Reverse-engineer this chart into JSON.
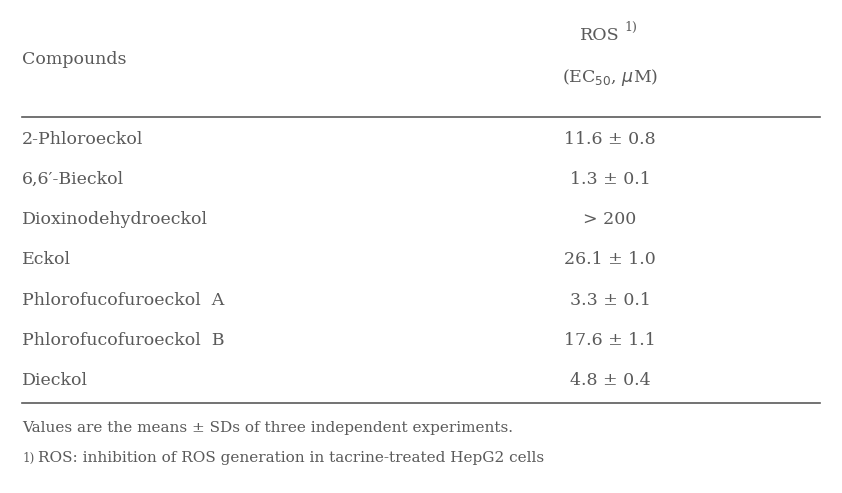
{
  "compounds": [
    "2-Phloroeckol",
    "6,6′-Bieckol",
    "Dioxinodehydroeckol",
    "Eckol",
    "Phlorofucofuroeckol  A",
    "Phlorofucofuroeckol  B",
    "Dieckol"
  ],
  "ros_values": [
    "11.6 ± 0.8",
    "1.3 ± 0.1",
    "> 200",
    "26.1 ± 1.0",
    "3.3 ± 0.1",
    "17.6 ± 1.1",
    "4.8 ± 0.4"
  ],
  "header_col1": "Compounds",
  "footnote1": "Values are the means ± SDs of three independent experiments.",
  "footnote2": "¹⦴ROS: inhibition of ROS generation in tacrine-treated HepG2 cells",
  "text_color": "#5a5a5a",
  "line_color": "#5a5a5a",
  "bg_color": "#ffffff",
  "font_size": 12.5,
  "footnote_font_size": 11.0
}
